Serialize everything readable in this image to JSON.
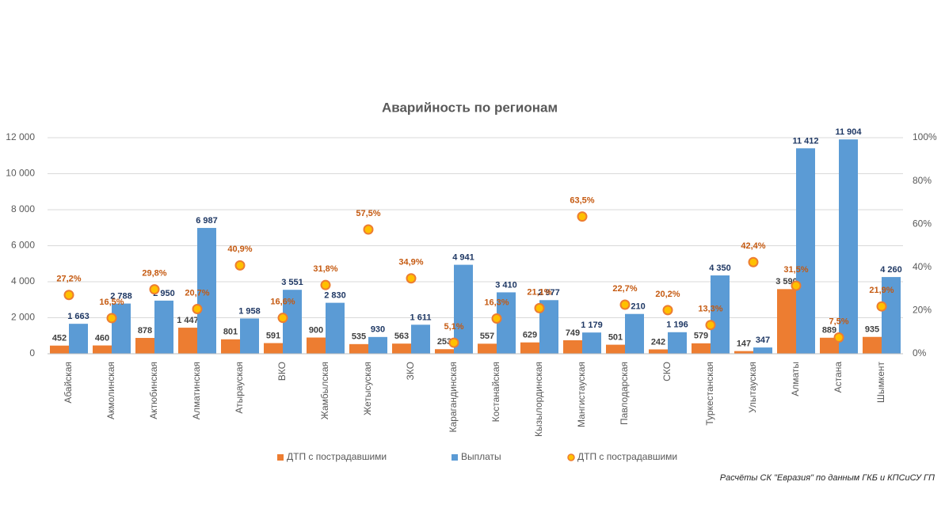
{
  "chart_data": {
    "type": "bar",
    "title": "Аварийность по регионам",
    "categories": [
      "Абайская",
      "Акмолинская",
      "Актюбинская",
      "Алматинская",
      "Атырауская",
      "ВКО",
      "Жамбылская",
      "Жетысуская",
      "ЗКО",
      "Карагандинская",
      "Костанайская",
      "Кызылординская",
      "Мангистауская",
      "Павлодарская",
      "СКО",
      "Туркестанская",
      "Улытауская",
      "Алматы",
      "Астана",
      "Шымкент"
    ],
    "series": [
      {
        "name": "ДТП с пострадавшими",
        "type": "bar",
        "color": "#ed7d31",
        "values": [
          452,
          460,
          878,
          1447,
          801,
          591,
          900,
          535,
          563,
          253,
          557,
          629,
          749,
          501,
          242,
          579,
          147,
          3590,
          889,
          935
        ],
        "value_labels": [
          "452",
          "460",
          "878",
          "1 447",
          "801",
          "591",
          "900",
          "535",
          "563",
          "253",
          "557",
          "629",
          "749",
          "501",
          "242",
          "579",
          "147",
          "3 590",
          "889",
          "935"
        ]
      },
      {
        "name": "Выплаты",
        "type": "bar",
        "color": "#5b9bd5",
        "values": [
          1663,
          2788,
          2950,
          6987,
          1958,
          3551,
          2830,
          930,
          1611,
          4941,
          3410,
          2977,
          1179,
          2210,
          1196,
          4350,
          347,
          11412,
          11904,
          4260
        ],
        "value_labels": [
          "1 663",
          "2 788",
          "2 950",
          "6 987",
          "1 958",
          "3 551",
          "2 830",
          "930",
          "1 611",
          "4 941",
          "3 410",
          "2 977",
          "1 179",
          "2 210",
          "1 196",
          "4 350",
          "347",
          "11 412",
          "11 904",
          "4 260"
        ]
      },
      {
        "name": "ДТП с пострадавшими",
        "type": "scatter",
        "axis": "y2",
        "color": "#ffc000",
        "edgecolor": "#ed7d31",
        "values": [
          27.2,
          16.5,
          29.8,
          20.7,
          40.9,
          16.6,
          31.8,
          57.5,
          34.9,
          5.1,
          16.3,
          21.1,
          63.5,
          22.7,
          20.2,
          13.3,
          42.4,
          31.5,
          7.5,
          21.9
        ],
        "value_labels": [
          "27,2%",
          "16,5%",
          "29,8%",
          "20,7%",
          "40,9%",
          "16,6%",
          "31,8%",
          "57,5%",
          "34,9%",
          "5,1%",
          "16,3%",
          "21,1%",
          "63,5%",
          "22,7%",
          "20,2%",
          "13,3%",
          "42,4%",
          "31,5%",
          "7,5%",
          "21,9%"
        ]
      }
    ],
    "ylim": [
      0,
      12000
    ],
    "yticks": [
      0,
      {
        "value": 2000,
        "label": "2 000"
      },
      {
        "value": 4000,
        "label": "4 000"
      },
      {
        "value": 6000,
        "label": "6 000"
      },
      {
        "value": 8000,
        "label": "8 000"
      },
      {
        "value": 10000,
        "label": "10 000"
      },
      {
        "value": 12000,
        "label": "12 000"
      }
    ],
    "y2lim": [
      0,
      100
    ],
    "y2ticks": [
      {
        "value": 0,
        "label": "0%"
      },
      {
        "value": 20,
        "label": "20%"
      },
      {
        "value": 40,
        "label": "40%"
      },
      {
        "value": 60,
        "label": "60%"
      },
      {
        "value": 80,
        "label": "80%"
      },
      {
        "value": 100,
        "label": "100%"
      }
    ],
    "grid": true,
    "legend": "bottom",
    "source": "Расчёты СК \"Евразия\" по данным ГКБ и КПСиСУ ГП"
  }
}
